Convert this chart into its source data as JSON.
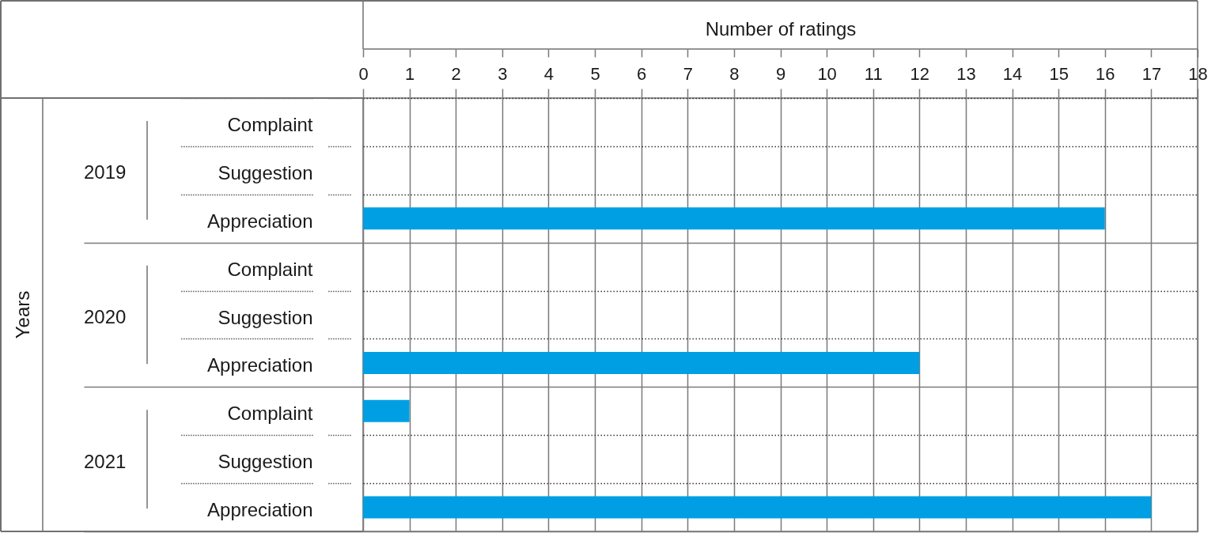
{
  "chart_data": {
    "type": "bar",
    "orientation": "horizontal",
    "xlabel": "Number of ratings",
    "categories": [
      "Complaint",
      "Suggestion",
      "Appreciation",
      "Complaint",
      "Suggestion",
      "Appreciation",
      "Complaint",
      "Suggestion",
      "Appreciation"
    ],
    "values": [
      0,
      0,
      16,
      0,
      0,
      12,
      1,
      0,
      17
    ],
    "color": "#009fe3",
    "xlim": [
      0,
      18
    ],
    "xticks": [
      0,
      1,
      2,
      3,
      4,
      5,
      6,
      7,
      8,
      9,
      10,
      11,
      12,
      13,
      14,
      15,
      16,
      17,
      18
    ],
    "grid": true,
    "annotations": [
      "Years",
      "2019",
      "2020",
      "2021"
    ]
  }
}
